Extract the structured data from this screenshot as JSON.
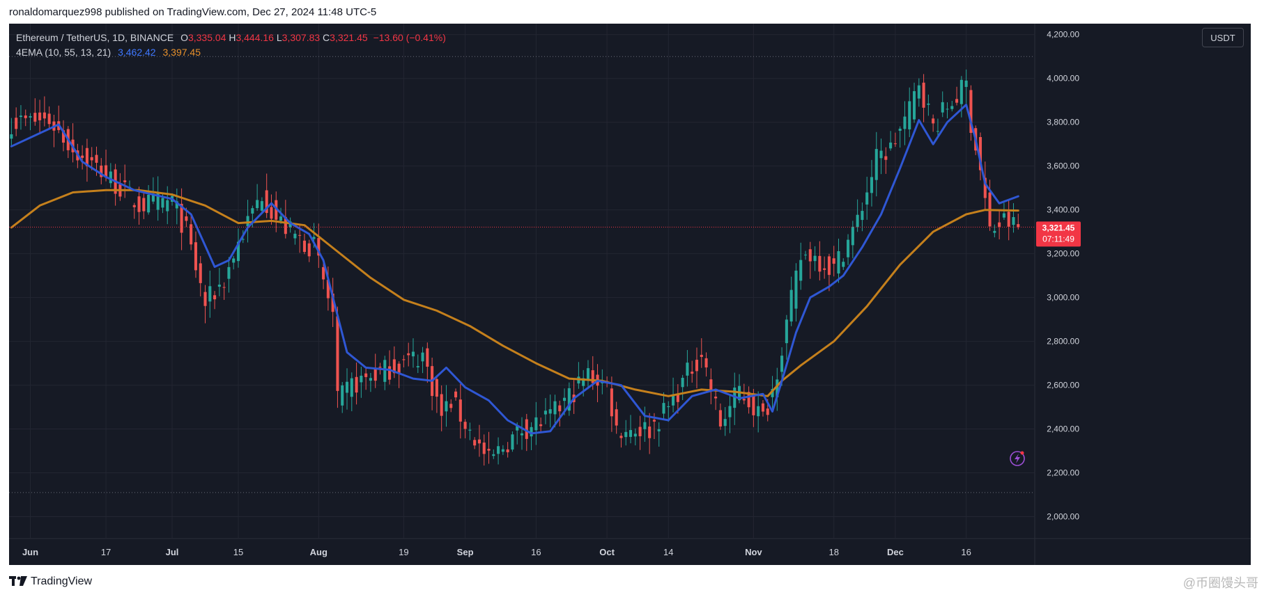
{
  "header": {
    "published_text": "ronaldomarquez998 published on TradingView.com, Dec 27, 2024 11:48 UTC-5"
  },
  "legend": {
    "symbol": "Ethereum / TetherUS, 1D, BINANCE",
    "open_label": "O",
    "open": "3,335.04",
    "high_label": "H",
    "high": "3,444.16",
    "low_label": "L",
    "low": "3,307.83",
    "close_label": "C",
    "close": "3,321.45",
    "change": "−13.60 (−0.41%)",
    "indicator_name": "4EMA (10, 55, 13, 21)",
    "ema_fast_value": "3,462.42",
    "ema_slow_value": "3,397.45"
  },
  "currency_button": "USDT",
  "price_badge": {
    "price": "3,321.45",
    "countdown": "07:11:49"
  },
  "footer": {
    "brand": "TradingView",
    "watermark": "@币圈馒头哥"
  },
  "colors": {
    "background": "#161a25",
    "grid": "#232632",
    "text": "#d1d4dc",
    "up": "#26a69a",
    "down": "#ef5350",
    "ema_fast": "#2f57d4",
    "ema_slow": "#c5801c",
    "badge": "#f23645"
  },
  "chart_data": {
    "type": "candlestick",
    "ylim": [
      1900,
      4250
    ],
    "yticks": [
      2000,
      2200,
      2400,
      2600,
      2800,
      3000,
      3200,
      3400,
      3600,
      3800,
      4000,
      4200
    ],
    "ytick_labels": [
      "2,000.00",
      "2,200.00",
      "2,400.00",
      "2,600.00",
      "2,800.00",
      "3,000.00",
      "3,200.00",
      "3,400.00",
      "3,600.00",
      "3,800.00",
      "4,000.00",
      "4,200.00"
    ],
    "x_start": "2024-05-28",
    "x_end": "2024-12-31",
    "xticks": [
      {
        "date": "2024-06-01",
        "label": "Jun",
        "bold": true
      },
      {
        "date": "2024-06-17",
        "label": "17",
        "bold": false
      },
      {
        "date": "2024-07-01",
        "label": "Jul",
        "bold": true
      },
      {
        "date": "2024-07-15",
        "label": "15",
        "bold": false
      },
      {
        "date": "2024-08-01",
        "label": "Aug",
        "bold": true
      },
      {
        "date": "2024-08-19",
        "label": "19",
        "bold": false
      },
      {
        "date": "2024-09-01",
        "label": "Sep",
        "bold": true
      },
      {
        "date": "2024-09-16",
        "label": "16",
        "bold": false
      },
      {
        "date": "2024-10-01",
        "label": "Oct",
        "bold": true
      },
      {
        "date": "2024-10-14",
        "label": "14",
        "bold": false
      },
      {
        "date": "2024-11-01",
        "label": "Nov",
        "bold": true
      },
      {
        "date": "2024-11-18",
        "label": "18",
        "bold": false
      },
      {
        "date": "2024-12-01",
        "label": "Dec",
        "bold": true
      },
      {
        "date": "2024-12-16",
        "label": "16",
        "bold": false
      }
    ],
    "reference_lines": [
      4100,
      2110
    ],
    "last_price": 3321.45,
    "close_path_dates": [
      "2024-05-28",
      "2024-06-05",
      "2024-06-10",
      "2024-06-17",
      "2024-06-24",
      "2024-07-01",
      "2024-07-04",
      "2024-07-08",
      "2024-07-12",
      "2024-07-15",
      "2024-07-20",
      "2024-07-23",
      "2024-07-27",
      "2024-07-31",
      "2024-08-04",
      "2024-08-05",
      "2024-08-08",
      "2024-08-14",
      "2024-08-23",
      "2024-08-27",
      "2024-08-29",
      "2024-09-06",
      "2024-09-09",
      "2024-09-13",
      "2024-09-19",
      "2024-09-27",
      "2024-10-01",
      "2024-10-03",
      "2024-10-10",
      "2024-10-14",
      "2024-10-18",
      "2024-10-21",
      "2024-10-25",
      "2024-10-29",
      "2024-11-03",
      "2024-11-05",
      "2024-11-08",
      "2024-11-11",
      "2024-11-13",
      "2024-11-18",
      "2024-11-23",
      "2024-11-27",
      "2024-11-30",
      "2024-12-04",
      "2024-12-06",
      "2024-12-09",
      "2024-12-12",
      "2024-12-16",
      "2024-12-17",
      "2024-12-19",
      "2024-12-21",
      "2024-12-24",
      "2024-12-27"
    ],
    "close_path_values": [
      3800,
      3810,
      3680,
      3560,
      3420,
      3440,
      3300,
      2970,
      3080,
      3250,
      3480,
      3360,
      3280,
      3230,
      2920,
      2520,
      2600,
      2660,
      2740,
      2460,
      2530,
      2250,
      2320,
      2400,
      2450,
      2650,
      2600,
      2400,
      2400,
      2500,
      2650,
      2750,
      2420,
      2580,
      2450,
      2580,
      2880,
      3180,
      3200,
      3130,
      3350,
      3630,
      3680,
      3850,
      3990,
      3780,
      3870,
      3970,
      3800,
      3580,
      3300,
      3350,
      3321
    ],
    "ema_fast_dates": [
      "2024-05-28",
      "2024-06-07",
      "2024-06-12",
      "2024-06-17",
      "2024-06-23",
      "2024-07-01",
      "2024-07-05",
      "2024-07-10",
      "2024-07-13",
      "2024-07-17",
      "2024-07-22",
      "2024-07-26",
      "2024-07-30",
      "2024-08-02",
      "2024-08-07",
      "2024-08-11",
      "2024-08-16",
      "2024-08-21",
      "2024-08-25",
      "2024-08-28",
      "2024-09-01",
      "2024-09-06",
      "2024-09-10",
      "2024-09-15",
      "2024-09-19",
      "2024-09-24",
      "2024-09-29",
      "2024-10-04",
      "2024-10-09",
      "2024-10-14",
      "2024-10-19",
      "2024-10-24",
      "2024-10-29",
      "2024-11-03",
      "2024-11-05",
      "2024-11-07",
      "2024-11-10",
      "2024-11-13",
      "2024-11-17",
      "2024-11-20",
      "2024-11-24",
      "2024-11-28",
      "2024-12-02",
      "2024-12-06",
      "2024-12-09",
      "2024-12-12",
      "2024-12-16",
      "2024-12-18",
      "2024-12-20",
      "2024-12-23",
      "2024-12-27"
    ],
    "ema_fast_values": [
      3690,
      3790,
      3620,
      3550,
      3490,
      3450,
      3380,
      3140,
      3170,
      3320,
      3430,
      3340,
      3290,
      3170,
      2750,
      2680,
      2670,
      2630,
      2620,
      2680,
      2590,
      2530,
      2440,
      2380,
      2390,
      2540,
      2620,
      2600,
      2460,
      2440,
      2550,
      2580,
      2540,
      2560,
      2480,
      2620,
      2840,
      3000,
      3050,
      3100,
      3230,
      3380,
      3590,
      3810,
      3700,
      3800,
      3880,
      3720,
      3520,
      3430,
      3462
    ],
    "ema_slow_dates": [
      "2024-05-28",
      "2024-06-03",
      "2024-06-10",
      "2024-06-17",
      "2024-06-24",
      "2024-07-01",
      "2024-07-08",
      "2024-07-15",
      "2024-07-22",
      "2024-07-29",
      "2024-08-05",
      "2024-08-12",
      "2024-08-19",
      "2024-08-26",
      "2024-09-02",
      "2024-09-09",
      "2024-09-16",
      "2024-09-23",
      "2024-09-30",
      "2024-10-07",
      "2024-10-14",
      "2024-10-21",
      "2024-10-28",
      "2024-11-04",
      "2024-11-07",
      "2024-11-11",
      "2024-11-18",
      "2024-11-25",
      "2024-12-02",
      "2024-12-09",
      "2024-12-16",
      "2024-12-20",
      "2024-12-27"
    ],
    "ema_slow_values": [
      3320,
      3420,
      3480,
      3490,
      3490,
      3470,
      3420,
      3340,
      3350,
      3330,
      3210,
      3090,
      2990,
      2940,
      2870,
      2780,
      2700,
      2630,
      2620,
      2580,
      2550,
      2580,
      2570,
      2550,
      2620,
      2690,
      2800,
      2960,
      3150,
      3300,
      3380,
      3400,
      3397
    ]
  }
}
